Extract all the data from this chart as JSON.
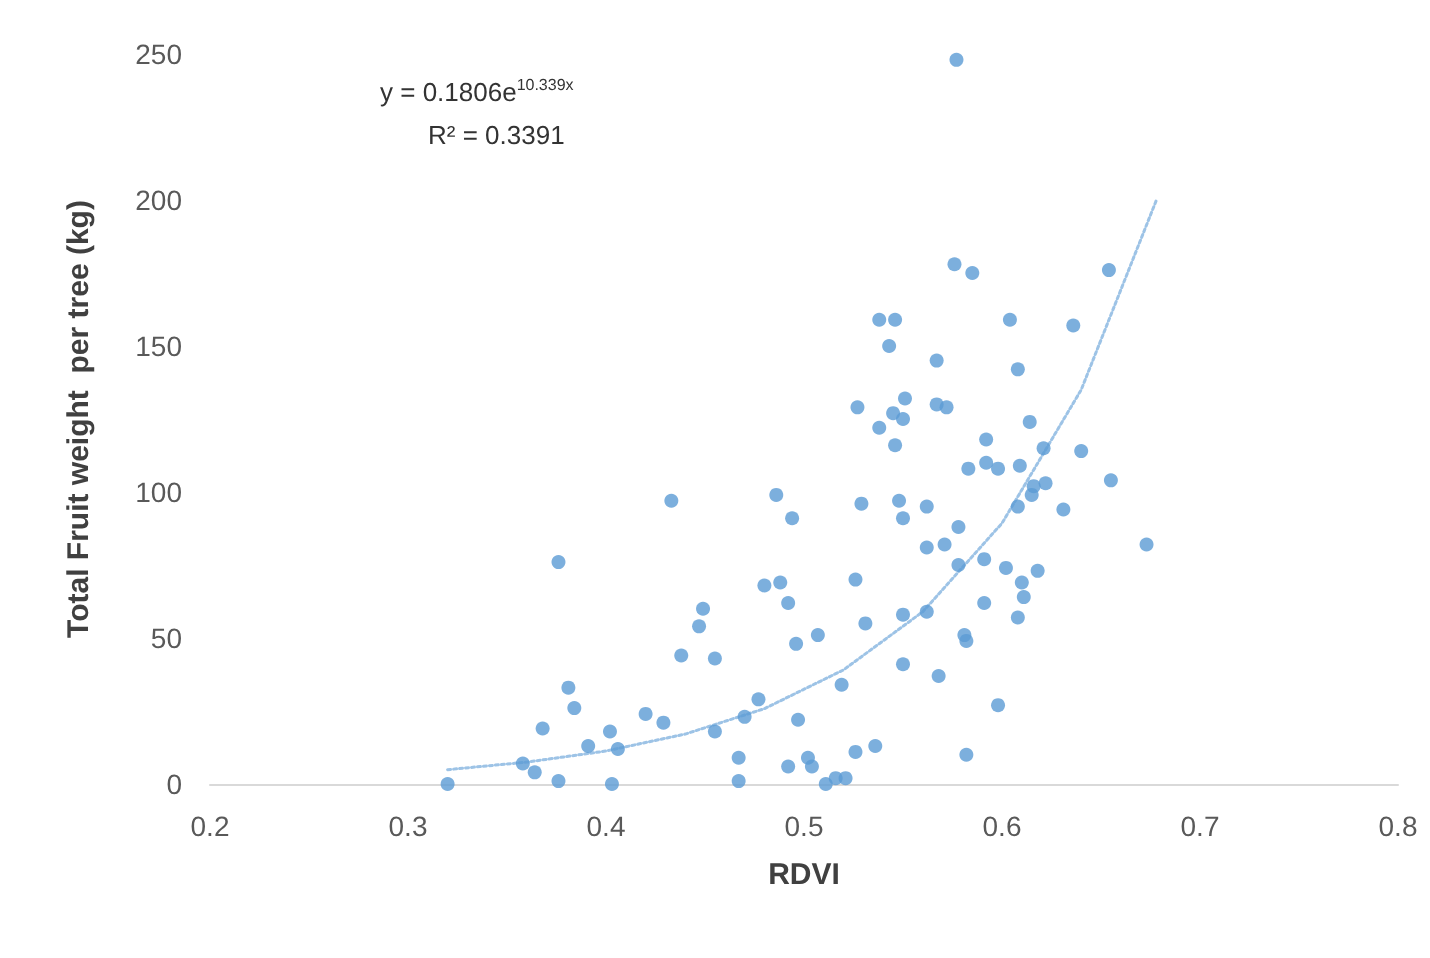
{
  "chart_data": {
    "type": "scatter",
    "xlabel": "RDVI",
    "ylabel": "Total Fruit weight  per tree (kg)",
    "annotations": [
      "y = 0.1806e$^{10.339x}$",
      "R² = 0.3391"
    ],
    "xlim": [
      0.2,
      0.8
    ],
    "xticks": [
      0.2,
      0.3,
      0.4,
      0.5,
      0.6,
      0.7,
      0.8
    ],
    "ylim": [
      0,
      250
    ],
    "yticks": [
      0,
      50,
      100,
      150,
      200,
      250
    ],
    "grid": false,
    "marker": "circle",
    "series": [
      {
        "color": "#5b9bd5",
        "x": [
          0.32,
          0.358,
          0.364,
          0.368,
          0.376,
          0.381,
          0.384,
          0.376,
          0.391,
          0.402,
          0.406,
          0.403,
          0.42,
          0.429,
          0.433,
          0.438,
          0.449,
          0.447,
          0.455,
          0.455,
          0.467,
          0.467,
          0.47,
          0.477,
          0.48,
          0.488,
          0.486,
          0.494,
          0.492,
          0.496,
          0.507,
          0.497,
          0.492,
          0.502,
          0.504,
          0.511,
          0.516,
          0.521,
          0.526,
          0.536,
          0.519,
          0.526,
          0.531,
          0.55,
          0.55,
          0.529,
          0.548,
          0.55,
          0.527,
          0.538,
          0.546,
          0.545,
          0.551,
          0.55,
          0.577,
          0.576,
          0.585,
          0.654,
          0.604,
          0.636,
          0.546,
          0.538,
          0.543,
          0.567,
          0.608,
          0.614,
          0.567,
          0.572,
          0.592,
          0.621,
          0.64,
          0.583,
          0.592,
          0.598,
          0.609,
          0.622,
          0.616,
          0.615,
          0.655,
          0.608,
          0.631,
          0.562,
          0.578,
          0.562,
          0.571,
          0.578,
          0.591,
          0.602,
          0.618,
          0.61,
          0.611,
          0.608,
          0.591,
          0.673,
          0.562,
          0.581,
          0.582,
          0.568,
          0.598,
          0.582
        ],
        "values": [
          0,
          7,
          4,
          19,
          76,
          33,
          26,
          1,
          13,
          18,
          12,
          0,
          24,
          21,
          97,
          44,
          60,
          54,
          43,
          18,
          9,
          1,
          23,
          29,
          68,
          69,
          99,
          91,
          62,
          48,
          51,
          22,
          6,
          9,
          6,
          0,
          2,
          2,
          11,
          13,
          34,
          70,
          55,
          41,
          58,
          96,
          97,
          91,
          129,
          122,
          116,
          127,
          132,
          125,
          248,
          178,
          175,
          176,
          159,
          157,
          159,
          159,
          150,
          145,
          142,
          124,
          130,
          129,
          118,
          115,
          114,
          108,
          110,
          108,
          109,
          103,
          102,
          99,
          104,
          95,
          94,
          95,
          88,
          81,
          82,
          75,
          77,
          74,
          73,
          69,
          64,
          57,
          62,
          82,
          59,
          51,
          49,
          37,
          27,
          10
        ]
      },
      {
        "type": "line",
        "color": "#9dc3e6",
        "marker": "none",
        "line_style": "dotted",
        "x": [
          0.32,
          0.36,
          0.4,
          0.44,
          0.48,
          0.52,
          0.56,
          0.6,
          0.64,
          0.678
        ],
        "values": [
          4.9,
          7.5,
          11.3,
          17.1,
          25.8,
          39.1,
          59.0,
          89.3,
          135,
          200
        ]
      }
    ]
  }
}
